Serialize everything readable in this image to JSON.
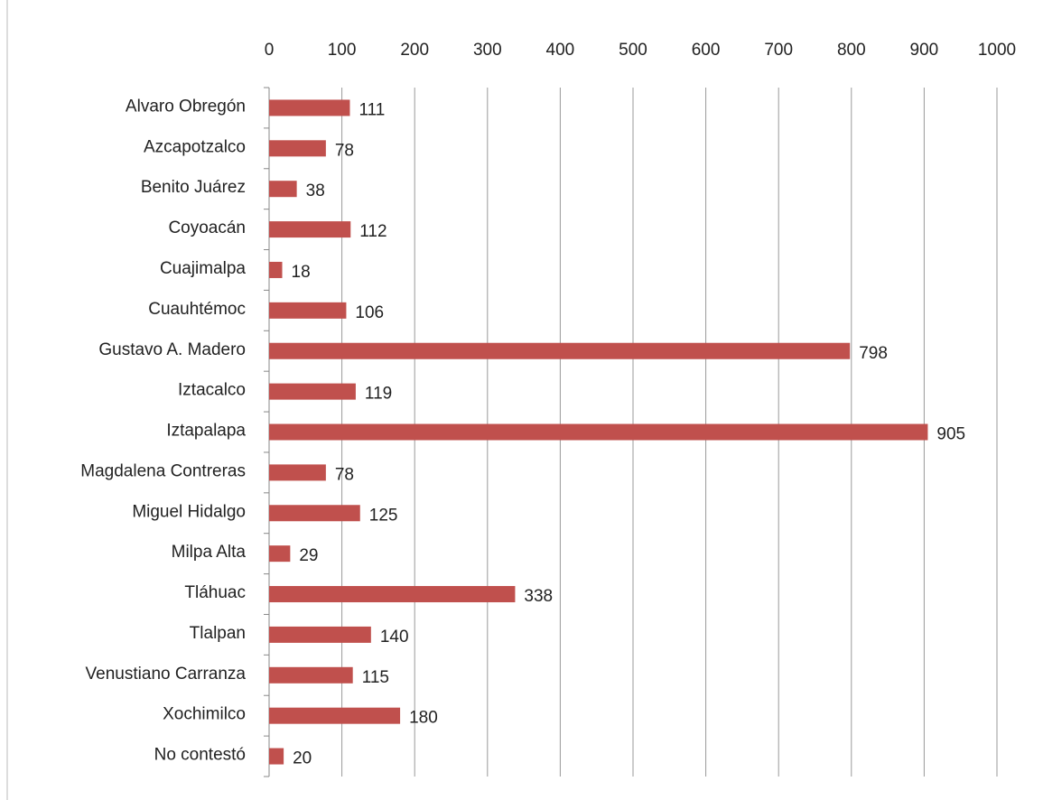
{
  "chart_data": {
    "type": "bar",
    "categories": [
      "Alvaro Obregón",
      "Azcapotzalco",
      "Benito Juárez",
      "Coyoacán",
      "Cuajimalpa",
      "Cuauhtémoc",
      "Gustavo A. Madero",
      "Iztacalco",
      "Iztapalapa",
      "Magdalena Contreras",
      "Miguel Hidalgo",
      "Milpa Alta",
      "Tláhuac",
      "Tlalpan",
      "Venustiano Carranza",
      "Xochimilco",
      "No contestó"
    ],
    "values": [
      111,
      78,
      38,
      112,
      18,
      106,
      798,
      119,
      905,
      78,
      125,
      29,
      338,
      140,
      115,
      180,
      20
    ],
    "color": "#c0504d",
    "xlim": [
      0,
      1000
    ],
    "xticks": [
      0,
      100,
      200,
      300,
      400,
      500,
      600,
      700,
      800,
      900,
      1000
    ],
    "grid": true
  }
}
